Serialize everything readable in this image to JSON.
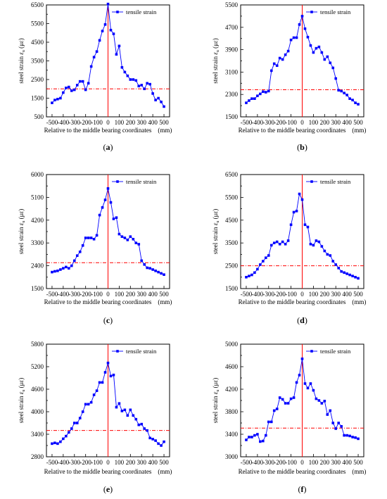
{
  "chart_data": [
    {
      "type": "line",
      "panel_label": "(a)",
      "xlabel": "Relative to the middle bearing coordinates    (mm)",
      "ylabel_parts": [
        "steel strain",
        "ε",
        "u",
        "(με)"
      ],
      "ylim": [
        500,
        6500
      ],
      "yticks": [
        500,
        1500,
        2500,
        3500,
        4500,
        5500,
        6500
      ],
      "xlim": [
        -550,
        550
      ],
      "xticks": [
        -500,
        -400,
        -300,
        -200,
        -100,
        0,
        100,
        200,
        300,
        400,
        500
      ],
      "hline": 2000,
      "vline": 0,
      "legend": "tensile strain",
      "legend_position": "top-right",
      "series": [
        {
          "name": "tensile strain",
          "x": [
            -500,
            -475,
            -450,
            -425,
            -400,
            -375,
            -350,
            -325,
            -300,
            -275,
            -250,
            -225,
            -200,
            -175,
            -150,
            -125,
            -100,
            -75,
            -50,
            -25,
            0,
            25,
            50,
            75,
            100,
            125,
            150,
            175,
            200,
            225,
            250,
            275,
            300,
            325,
            350,
            375,
            400,
            425,
            450,
            475,
            500
          ],
          "y": [
            1250,
            1400,
            1450,
            1500,
            1800,
            2050,
            2100,
            1900,
            1950,
            2200,
            2400,
            2400,
            1950,
            2300,
            3200,
            3700,
            4000,
            4600,
            5100,
            5450,
            6550,
            5150,
            4950,
            3850,
            4300,
            3150,
            2900,
            2700,
            2500,
            2500,
            2450,
            2150,
            2200,
            2000,
            2300,
            2250,
            1750,
            1400,
            1500,
            1300,
            1050
          ]
        }
      ]
    },
    {
      "type": "line",
      "panel_label": "(b)",
      "xlabel": "Relative to the middle bearing coordinates    (mm)",
      "ylabel_parts": [
        "steel strain",
        "ε",
        "u",
        "(με)"
      ],
      "ylim": [
        1500,
        5500
      ],
      "yticks": [
        1500,
        2300,
        3100,
        3900,
        4700,
        5500
      ],
      "xlim": [
        -550,
        550
      ],
      "xticks": [
        -500,
        -400,
        -300,
        -200,
        -100,
        0,
        100,
        200,
        300,
        400,
        500
      ],
      "hline": 2470,
      "vline": 0,
      "legend": "tensile strain",
      "legend_position": "top-right",
      "series": [
        {
          "name": "tensile strain",
          "x": [
            -500,
            -475,
            -450,
            -425,
            -400,
            -375,
            -350,
            -325,
            -300,
            -275,
            -250,
            -225,
            -200,
            -175,
            -150,
            -125,
            -100,
            -75,
            -50,
            -25,
            0,
            25,
            50,
            75,
            100,
            125,
            150,
            175,
            200,
            225,
            250,
            275,
            300,
            325,
            350,
            375,
            400,
            425,
            450,
            475,
            500
          ],
          "y": [
            2000,
            2080,
            2150,
            2150,
            2250,
            2320,
            2400,
            2380,
            2420,
            3150,
            3400,
            3330,
            3600,
            3550,
            3720,
            3850,
            4250,
            4330,
            4330,
            4800,
            5100,
            4650,
            4350,
            4050,
            3800,
            3950,
            4000,
            3800,
            3550,
            3650,
            3430,
            3250,
            2870,
            2450,
            2420,
            2350,
            2280,
            2150,
            2100,
            2000,
            1950
          ]
        }
      ]
    },
    {
      "type": "line",
      "panel_label": "(c)",
      "xlabel": "Relative to the middle bearing coordinates    (mm)",
      "ylabel_parts": [
        "steel strain",
        "ε",
        "u",
        "(με)"
      ],
      "ylim": [
        1500,
        6000
      ],
      "yticks": [
        1500,
        2400,
        3300,
        4200,
        5100,
        6000
      ],
      "xlim": [
        -550,
        550
      ],
      "xticks": [
        -500,
        -400,
        -300,
        -200,
        -100,
        0,
        100,
        200,
        300,
        400,
        500
      ],
      "hline": 2520,
      "vline": 0,
      "legend": "tensile strain",
      "legend_position": "top-right",
      "series": [
        {
          "name": "tensile strain",
          "x": [
            -500,
            -475,
            -450,
            -425,
            -400,
            -375,
            -350,
            -325,
            -300,
            -275,
            -250,
            -225,
            -200,
            -175,
            -150,
            -125,
            -100,
            -75,
            -50,
            -25,
            0,
            25,
            50,
            75,
            100,
            125,
            150,
            175,
            200,
            225,
            250,
            275,
            300,
            325,
            350,
            375,
            400,
            425,
            450,
            475,
            500
          ],
          "y": [
            2150,
            2180,
            2200,
            2250,
            2300,
            2350,
            2300,
            2400,
            2600,
            2800,
            2950,
            3200,
            3500,
            3500,
            3500,
            3450,
            3600,
            4400,
            4700,
            5000,
            5450,
            4900,
            4250,
            4300,
            3650,
            3550,
            3500,
            3420,
            3550,
            3450,
            3300,
            3250,
            2600,
            2450,
            2320,
            2300,
            2250,
            2200,
            2150,
            2100,
            2050
          ]
        }
      ]
    },
    {
      "type": "line",
      "panel_label": "(d)",
      "xlabel": "Relative to the middle bearing coordinates    (mm)",
      "ylabel_parts": [
        "steel strain",
        "ε",
        "u",
        "(με)"
      ],
      "ylim": [
        1500,
        6500
      ],
      "yticks": [
        1500,
        2500,
        3500,
        4500,
        5500,
        6500
      ],
      "xlim": [
        -550,
        550
      ],
      "xticks": [
        -500,
        -400,
        -300,
        -200,
        -100,
        0,
        100,
        200,
        300,
        400,
        500
      ],
      "hline": 2500,
      "vline": 0,
      "legend": "tensile strain",
      "legend_position": "top-right",
      "series": [
        {
          "name": "tensile strain",
          "x": [
            -500,
            -475,
            -450,
            -425,
            -400,
            -375,
            -350,
            -325,
            -300,
            -275,
            -250,
            -225,
            -200,
            -175,
            -150,
            -125,
            -100,
            -75,
            -50,
            -25,
            0,
            25,
            50,
            75,
            100,
            125,
            150,
            175,
            200,
            225,
            250,
            275,
            300,
            325,
            350,
            375,
            400,
            425,
            450,
            475,
            500
          ],
          "y": [
            2000,
            2050,
            2100,
            2200,
            2350,
            2550,
            2700,
            2850,
            2950,
            3400,
            3500,
            3550,
            3450,
            3550,
            3450,
            3600,
            4300,
            4850,
            4900,
            5650,
            5400,
            4300,
            4200,
            3450,
            3400,
            3600,
            3550,
            3350,
            3150,
            3000,
            2950,
            2700,
            2550,
            2400,
            2250,
            2200,
            2150,
            2100,
            2050,
            2000,
            1950
          ]
        }
      ]
    },
    {
      "type": "line",
      "panel_label": "(e)",
      "xlabel": "Relative to the middle bearing coordinates    (mm)",
      "ylabel_parts": [
        "steel strain",
        "ε",
        "u",
        "(με)"
      ],
      "ylim": [
        2800,
        5800
      ],
      "yticks": [
        2800,
        3400,
        4000,
        4600,
        5200,
        5800
      ],
      "xlim": [
        -550,
        550
      ],
      "xticks": [
        -500,
        -400,
        -300,
        -200,
        -100,
        0,
        100,
        200,
        300,
        400,
        500
      ],
      "hline": 3500,
      "vline": 0,
      "legend": "tensile strain",
      "legend_position": "top-right",
      "series": [
        {
          "name": "tensile strain",
          "x": [
            -500,
            -475,
            -450,
            -425,
            -400,
            -375,
            -350,
            -325,
            -300,
            -275,
            -250,
            -225,
            -200,
            -175,
            -150,
            -125,
            -100,
            -75,
            -50,
            -25,
            0,
            25,
            50,
            75,
            100,
            125,
            150,
            175,
            200,
            225,
            250,
            275,
            300,
            325,
            350,
            375,
            400,
            425,
            450,
            475,
            500
          ],
          "y": [
            3150,
            3170,
            3150,
            3200,
            3280,
            3350,
            3450,
            3550,
            3700,
            3700,
            3830,
            4000,
            4200,
            4200,
            4250,
            4450,
            4560,
            4780,
            4780,
            5050,
            5300,
            4950,
            4980,
            4120,
            4220,
            4020,
            4050,
            3900,
            4050,
            3900,
            3800,
            3650,
            3670,
            3550,
            3500,
            3300,
            3270,
            3230,
            3150,
            3100,
            3200
          ]
        }
      ]
    },
    {
      "type": "line",
      "panel_label": "(f)",
      "xlabel": "Relative to the middle bearing coordinates    (mm)",
      "ylabel_parts": [
        "steel strain",
        "ε",
        "u",
        "(με)"
      ],
      "ylim": [
        3000,
        5000
      ],
      "yticks": [
        3000,
        3400,
        3800,
        4200,
        4600,
        5000
      ],
      "xlim": [
        -550,
        550
      ],
      "xticks": [
        -500,
        -400,
        -300,
        -200,
        -100,
        0,
        100,
        200,
        300,
        400,
        500
      ],
      "hline": 3510,
      "vline": 0,
      "legend": "tensile strain",
      "legend_position": "top-right",
      "series": [
        {
          "name": "tensile strain",
          "x": [
            -500,
            -475,
            -450,
            -425,
            -400,
            -375,
            -350,
            -325,
            -300,
            -275,
            -250,
            -225,
            -200,
            -175,
            -150,
            -125,
            -100,
            -75,
            -50,
            -25,
            0,
            25,
            50,
            75,
            100,
            125,
            150,
            175,
            200,
            225,
            250,
            275,
            300,
            325,
            350,
            375,
            400,
            425,
            450,
            475,
            500
          ],
          "y": [
            3300,
            3350,
            3350,
            3380,
            3400,
            3270,
            3280,
            3380,
            3620,
            3620,
            3820,
            3850,
            4050,
            4020,
            3950,
            3950,
            4030,
            4050,
            4320,
            4450,
            4740,
            4300,
            4220,
            4300,
            4180,
            4030,
            4000,
            3950,
            3990,
            3750,
            3820,
            3600,
            3500,
            3600,
            3540,
            3380,
            3380,
            3370,
            3350,
            3340,
            3320
          ]
        }
      ]
    }
  ]
}
